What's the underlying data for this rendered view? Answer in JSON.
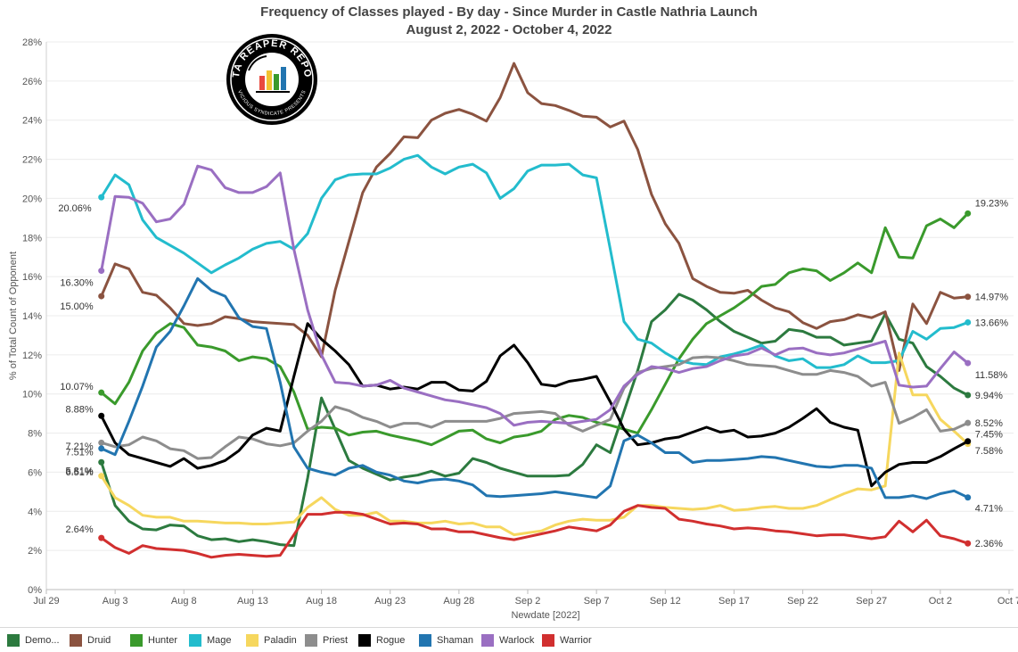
{
  "title": {
    "line1": "Frequency of Classes played - By day - Since Murder in Castle Nathria  Launch",
    "line2": "August 2, 2022 - October 4, 2022"
  },
  "logo": {
    "text_top": "DATA REAPER REPORT",
    "text_bottom": "VICIOUS SYNDICATE PRESENTS"
  },
  "colors": {
    "Demo...": "#2c7a3f",
    "Druid": "#8b5340",
    "Hunter": "#3a9a2c",
    "Mage": "#23bccd",
    "Paladin": "#f6d75e",
    "Priest": "#8d8d8d",
    "Rogue": "#000000",
    "Shaman": "#2275b0",
    "Warlock": "#9a6fc2",
    "Warrior": "#d12f2f"
  },
  "chart_data": {
    "type": "line",
    "xlabel": "Newdate [2022]",
    "ylabel": "% of Total Count of Opponent",
    "x_start": "2022-08-02",
    "x_end": "2022-10-04",
    "xlim": [
      "2022-07-29",
      "2022-10-07"
    ],
    "ylim": [
      0,
      28
    ],
    "x_ticks": [
      "Jul 29",
      "Aug 3",
      "Aug 8",
      "Aug 13",
      "Aug 18",
      "Aug 23",
      "Aug 28",
      "Sep 2",
      "Sep 7",
      "Sep 12",
      "Sep 17",
      "Sep 22",
      "Sep 27",
      "Oct 2",
      "Oct 7"
    ],
    "y_ticks": [
      "0%",
      "2%",
      "4%",
      "6%",
      "8%",
      "10%",
      "12%",
      "14%",
      "16%",
      "18%",
      "20%",
      "22%",
      "24%",
      "26%",
      "28%"
    ],
    "grid": "horizontal",
    "legend": "bottom",
    "series": [
      {
        "name": "Demo...",
        "start_label": "6.51%",
        "end_label": "9.94%",
        "values": [
          6.51,
          4.3,
          3.5,
          3.1,
          3.05,
          3.3,
          3.25,
          2.75,
          2.55,
          2.6,
          2.45,
          2.55,
          2.45,
          2.3,
          2.25,
          5.7,
          9.8,
          8.2,
          6.6,
          6.2,
          5.9,
          5.6,
          5.75,
          5.85,
          6.05,
          5.8,
          5.95,
          6.7,
          6.5,
          6.2,
          6.0,
          5.8,
          5.8,
          5.8,
          5.85,
          6.4,
          7.4,
          7.0,
          9.1,
          11.2,
          13.7,
          14.3,
          15.1,
          14.8,
          14.3,
          13.7,
          13.2,
          12.9,
          12.6,
          12.7,
          13.3,
          13.2,
          12.9,
          12.9,
          12.5,
          12.6,
          12.7,
          14.1,
          12.8,
          12.6,
          11.4,
          10.9,
          10.3,
          9.94
        ]
      },
      {
        "name": "Druid",
        "start_label": "15.00%",
        "end_label": "14.97%",
        "values": [
          15.0,
          16.65,
          16.4,
          15.2,
          15.05,
          14.4,
          13.6,
          13.5,
          13.6,
          13.95,
          13.85,
          13.7,
          13.65,
          13.6,
          13.55,
          13.0,
          11.9,
          15.3,
          17.8,
          20.3,
          21.6,
          22.3,
          23.15,
          23.1,
          24.0,
          24.35,
          24.55,
          24.3,
          23.95,
          25.15,
          26.9,
          25.4,
          24.85,
          24.75,
          24.5,
          24.2,
          24.15,
          23.65,
          23.95,
          22.5,
          20.2,
          18.7,
          17.7,
          15.9,
          15.5,
          15.2,
          15.15,
          15.3,
          14.8,
          14.4,
          14.2,
          13.65,
          13.35,
          13.7,
          13.8,
          14.05,
          13.9,
          14.2,
          11.2,
          14.6,
          13.6,
          15.2,
          14.9,
          14.97
        ]
      },
      {
        "name": "Hunter",
        "start_label": "10.07%",
        "end_label": "19.23%",
        "values": [
          10.07,
          9.5,
          10.6,
          12.2,
          13.1,
          13.6,
          13.4,
          12.5,
          12.4,
          12.2,
          11.7,
          11.9,
          11.8,
          11.4,
          10.1,
          8.2,
          8.3,
          8.25,
          7.9,
          8.05,
          8.1,
          7.9,
          7.75,
          7.6,
          7.4,
          7.75,
          8.1,
          8.15,
          7.7,
          7.5,
          7.8,
          7.9,
          8.1,
          8.7,
          8.9,
          8.8,
          8.55,
          8.4,
          8.2,
          8.0,
          9.2,
          10.5,
          11.8,
          12.8,
          13.6,
          14.0,
          14.4,
          14.9,
          15.5,
          15.6,
          16.2,
          16.4,
          16.3,
          15.8,
          16.2,
          16.7,
          16.2,
          18.5,
          17.0,
          16.95,
          18.6,
          18.95,
          18.5,
          19.23
        ]
      },
      {
        "name": "Mage",
        "start_label": "20.06%",
        "end_label": "13.66%",
        "values": [
          20.06,
          21.2,
          20.7,
          18.9,
          18.0,
          17.6,
          17.2,
          16.7,
          16.2,
          16.6,
          16.95,
          17.4,
          17.7,
          17.8,
          17.4,
          18.2,
          20.0,
          20.95,
          21.2,
          21.25,
          21.25,
          21.55,
          22.0,
          22.2,
          21.6,
          21.25,
          21.6,
          21.75,
          21.3,
          20.0,
          20.5,
          21.4,
          21.7,
          21.7,
          21.75,
          21.2,
          21.05,
          17.4,
          13.7,
          12.8,
          12.6,
          12.1,
          11.7,
          11.55,
          11.5,
          11.9,
          12.05,
          12.25,
          12.5,
          11.95,
          11.7,
          11.8,
          11.35,
          11.35,
          11.5,
          11.95,
          11.6,
          11.6,
          11.7,
          13.2,
          12.8,
          13.35,
          13.4,
          13.66
        ]
      },
      {
        "name": "Paladin",
        "start_label": "5.81%",
        "end_label": "7.45%",
        "values": [
          5.81,
          4.7,
          4.3,
          3.8,
          3.7,
          3.7,
          3.5,
          3.5,
          3.45,
          3.4,
          3.4,
          3.35,
          3.35,
          3.4,
          3.45,
          4.2,
          4.7,
          4.1,
          3.8,
          3.8,
          3.95,
          3.5,
          3.5,
          3.4,
          3.4,
          3.5,
          3.35,
          3.4,
          3.2,
          3.2,
          2.8,
          2.9,
          3.0,
          3.3,
          3.5,
          3.6,
          3.55,
          3.55,
          3.7,
          4.3,
          4.3,
          4.2,
          4.15,
          4.1,
          4.15,
          4.3,
          4.05,
          4.1,
          4.2,
          4.25,
          4.15,
          4.15,
          4.3,
          4.6,
          4.9,
          5.15,
          5.1,
          5.3,
          12.1,
          9.95,
          9.95,
          8.7,
          8.1,
          7.45
        ]
      },
      {
        "name": "Priest",
        "start_label": "7.51%",
        "end_label": "8.52%",
        "values": [
          7.51,
          7.3,
          7.4,
          7.8,
          7.6,
          7.2,
          7.1,
          6.7,
          6.75,
          7.3,
          7.8,
          7.7,
          7.45,
          7.35,
          7.5,
          8.1,
          8.6,
          9.35,
          9.15,
          8.8,
          8.6,
          8.3,
          8.5,
          8.5,
          8.3,
          8.6,
          8.6,
          8.6,
          8.6,
          8.75,
          9.0,
          9.05,
          9.1,
          9.0,
          8.4,
          8.1,
          8.4,
          8.7,
          10.3,
          11.1,
          11.3,
          11.4,
          11.5,
          11.85,
          11.9,
          11.85,
          11.7,
          11.5,
          11.45,
          11.4,
          11.2,
          11.0,
          11.0,
          11.2,
          11.1,
          10.9,
          10.4,
          10.6,
          8.5,
          8.8,
          9.2,
          8.1,
          8.2,
          8.52
        ]
      },
      {
        "name": "Rogue",
        "start_label": "8.88%",
        "end_label": "7.58%",
        "values": [
          8.88,
          7.5,
          6.9,
          6.7,
          6.5,
          6.3,
          6.7,
          6.2,
          6.35,
          6.6,
          7.1,
          7.9,
          8.25,
          8.1,
          10.9,
          13.6,
          12.8,
          12.2,
          11.5,
          10.4,
          10.45,
          10.25,
          10.35,
          10.25,
          10.6,
          10.6,
          10.2,
          10.15,
          10.65,
          11.95,
          12.5,
          11.6,
          10.5,
          10.4,
          10.65,
          10.75,
          10.9,
          9.6,
          8.2,
          7.4,
          7.5,
          7.7,
          7.8,
          8.05,
          8.3,
          8.05,
          8.15,
          7.8,
          7.85,
          8.0,
          8.3,
          8.75,
          9.25,
          8.55,
          8.3,
          8.15,
          5.3,
          6.0,
          6.4,
          6.5,
          6.5,
          6.8,
          7.2,
          7.58
        ]
      },
      {
        "name": "Shaman",
        "start_label": "7.21%",
        "end_label": "4.71%",
        "values": [
          7.21,
          6.9,
          8.6,
          10.4,
          12.4,
          13.2,
          14.5,
          15.9,
          15.3,
          15.0,
          13.9,
          13.45,
          13.35,
          10.6,
          7.3,
          6.2,
          6.0,
          5.85,
          6.2,
          6.35,
          6.0,
          5.85,
          5.55,
          5.45,
          5.6,
          5.65,
          5.55,
          5.35,
          4.8,
          4.75,
          4.8,
          4.85,
          4.9,
          5.0,
          4.9,
          4.8,
          4.7,
          5.3,
          7.6,
          7.9,
          7.5,
          7.0,
          7.0,
          6.5,
          6.6,
          6.6,
          6.65,
          6.7,
          6.8,
          6.75,
          6.6,
          6.45,
          6.3,
          6.25,
          6.35,
          6.35,
          6.2,
          4.7,
          4.7,
          4.8,
          4.65,
          4.9,
          5.05,
          4.71
        ]
      },
      {
        "name": "Warlock",
        "start_label": "16.30%",
        "end_label": "11.58%",
        "values": [
          16.3,
          20.1,
          20.05,
          19.75,
          18.8,
          18.95,
          19.7,
          21.65,
          21.45,
          20.55,
          20.3,
          20.3,
          20.6,
          21.3,
          17.4,
          14.3,
          12.0,
          10.6,
          10.55,
          10.4,
          10.45,
          10.7,
          10.3,
          10.1,
          9.9,
          9.7,
          9.6,
          9.45,
          9.3,
          9.0,
          8.4,
          8.55,
          8.6,
          8.55,
          8.5,
          8.6,
          8.7,
          9.2,
          10.4,
          11.0,
          11.4,
          11.3,
          11.1,
          11.3,
          11.4,
          11.7,
          11.95,
          12.05,
          12.35,
          12.0,
          12.3,
          12.35,
          12.1,
          12.0,
          12.1,
          12.3,
          12.5,
          12.7,
          10.45,
          10.35,
          10.4,
          11.3,
          12.15,
          11.58
        ]
      },
      {
        "name": "Warrior",
        "start_label": "2.64%",
        "end_label": "2.36%",
        "values": [
          2.64,
          2.15,
          1.85,
          2.25,
          2.1,
          2.05,
          2.0,
          1.85,
          1.65,
          1.75,
          1.8,
          1.75,
          1.7,
          1.75,
          2.8,
          3.85,
          3.85,
          3.95,
          3.95,
          3.85,
          3.6,
          3.35,
          3.4,
          3.35,
          3.1,
          3.1,
          2.95,
          2.95,
          2.8,
          2.65,
          2.55,
          2.7,
          2.85,
          3.0,
          3.2,
          3.1,
          3.0,
          3.3,
          4.0,
          4.3,
          4.2,
          4.15,
          3.6,
          3.5,
          3.35,
          3.25,
          3.1,
          3.15,
          3.1,
          3.0,
          2.95,
          2.85,
          2.75,
          2.8,
          2.8,
          2.7,
          2.6,
          2.7,
          3.5,
          2.95,
          3.55,
          2.75,
          2.6,
          2.36
        ]
      }
    ]
  }
}
